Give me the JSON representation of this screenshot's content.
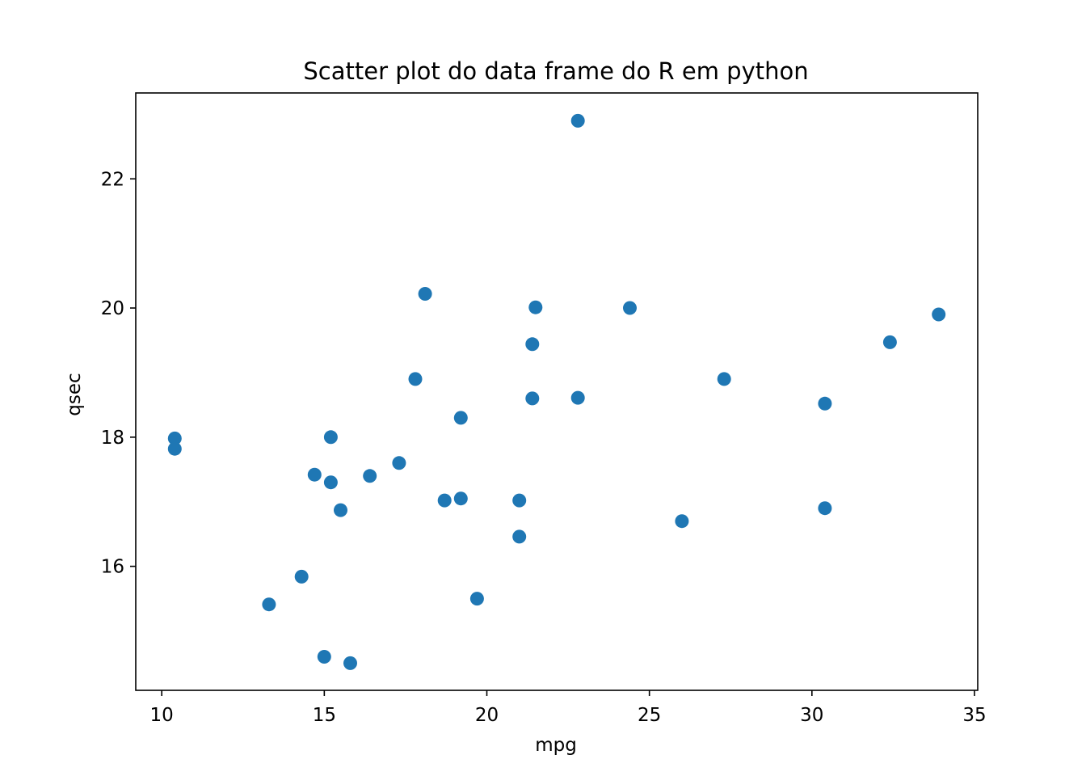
{
  "chart_data": {
    "type": "scatter",
    "title": "Scatter plot do data frame do R em python",
    "xlabel": "mpg",
    "ylabel": "qsec",
    "xlim": [
      9.2,
      35.1
    ],
    "ylim": [
      14.08,
      23.33
    ],
    "xticks": [
      10,
      15,
      20,
      25,
      30,
      35
    ],
    "yticks": [
      16,
      18,
      20,
      22
    ],
    "grid": false,
    "color": "#1f77b4",
    "points": [
      {
        "x": 21.0,
        "y": 16.46
      },
      {
        "x": 21.0,
        "y": 17.02
      },
      {
        "x": 22.8,
        "y": 18.61
      },
      {
        "x": 21.4,
        "y": 19.44
      },
      {
        "x": 18.7,
        "y": 17.02
      },
      {
        "x": 18.1,
        "y": 20.22
      },
      {
        "x": 14.3,
        "y": 15.84
      },
      {
        "x": 24.4,
        "y": 20.0
      },
      {
        "x": 22.8,
        "y": 22.9
      },
      {
        "x": 19.2,
        "y": 18.3
      },
      {
        "x": 17.8,
        "y": 18.9
      },
      {
        "x": 16.4,
        "y": 17.4
      },
      {
        "x": 17.3,
        "y": 17.6
      },
      {
        "x": 15.2,
        "y": 18.0
      },
      {
        "x": 10.4,
        "y": 17.98
      },
      {
        "x": 10.4,
        "y": 17.82
      },
      {
        "x": 14.7,
        "y": 17.42
      },
      {
        "x": 32.4,
        "y": 19.47
      },
      {
        "x": 30.4,
        "y": 18.52
      },
      {
        "x": 33.9,
        "y": 19.9
      },
      {
        "x": 21.5,
        "y": 20.01
      },
      {
        "x": 15.5,
        "y": 16.87
      },
      {
        "x": 15.2,
        "y": 17.3
      },
      {
        "x": 13.3,
        "y": 15.41
      },
      {
        "x": 19.2,
        "y": 17.05
      },
      {
        "x": 27.3,
        "y": 18.9
      },
      {
        "x": 26.0,
        "y": 16.7
      },
      {
        "x": 30.4,
        "y": 16.9
      },
      {
        "x": 15.8,
        "y": 14.5
      },
      {
        "x": 19.7,
        "y": 15.5
      },
      {
        "x": 15.0,
        "y": 14.6
      },
      {
        "x": 21.4,
        "y": 18.6
      }
    ]
  }
}
